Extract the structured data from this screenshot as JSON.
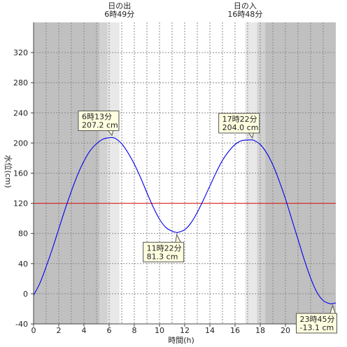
{
  "chart_data": {
    "type": "line",
    "xlabel": "時間(h)",
    "ylabel": "水位(cm)",
    "xlim": [
      0,
      24
    ],
    "ylim": [
      -40,
      360
    ],
    "xticks": [
      0,
      2,
      4,
      6,
      8,
      10,
      12,
      14,
      16,
      18,
      20,
      22
    ],
    "yticks": [
      -40,
      0,
      40,
      80,
      120,
      160,
      200,
      240,
      280,
      320
    ],
    "grid": true,
    "reference_line": {
      "y": 120,
      "color": "#e01010"
    },
    "series": [
      {
        "color": "#0000ee",
        "x": [
          0,
          0.5,
          1,
          1.5,
          2,
          2.5,
          3,
          3.5,
          4,
          4.5,
          5,
          5.5,
          6,
          6.22,
          6.5,
          7,
          7.5,
          8,
          8.5,
          9,
          9.5,
          10,
          10.5,
          11,
          11.37,
          11.5,
          12,
          12.5,
          13,
          13.5,
          14,
          14.5,
          15,
          15.5,
          16,
          16.5,
          17,
          17.37,
          17.5,
          18,
          18.5,
          19,
          19.5,
          20,
          20.5,
          21,
          21.5,
          22,
          22.5,
          23,
          23.5,
          23.75,
          24
        ],
        "y": [
          -2,
          14,
          36,
          60,
          86,
          112,
          136,
          158,
          176,
          190,
          199,
          205,
          207,
          207.2,
          206,
          199,
          187,
          172,
          154,
          134,
          115,
          99,
          88,
          83,
          81.3,
          81.6,
          85,
          94,
          108,
          125,
          143,
          161,
          177,
          189,
          198,
          203,
          204,
          204,
          203.5,
          198,
          187,
          171,
          150,
          126,
          99,
          72,
          45,
          21,
          2,
          -9,
          -13,
          -13.1,
          -12
        ]
      }
    ],
    "callouts": [
      {
        "time": "6時13分",
        "value": "207.2 cm",
        "x": 6.22,
        "y": 207.2
      },
      {
        "time": "11時22分",
        "value": "81.3 cm",
        "x": 11.37,
        "y": 81.3
      },
      {
        "time": "17時22分",
        "value": "204.0 cm",
        "x": 17.37,
        "y": 204.0
      },
      {
        "time": "23時45分",
        "value": "-13.1 cm",
        "x": 23.75,
        "y": -13.1
      }
    ],
    "sunrise": {
      "title": "日の出",
      "time": "6時49分",
      "x": 6.82
    },
    "sunset": {
      "title": "日の入",
      "time": "16時48分",
      "x": 16.8
    },
    "colors": {
      "night": "#c0c0c0",
      "twilight_outer": "#d2d2d2",
      "twilight_inner": "#e8e8e8",
      "day": "#ffffff"
    }
  }
}
